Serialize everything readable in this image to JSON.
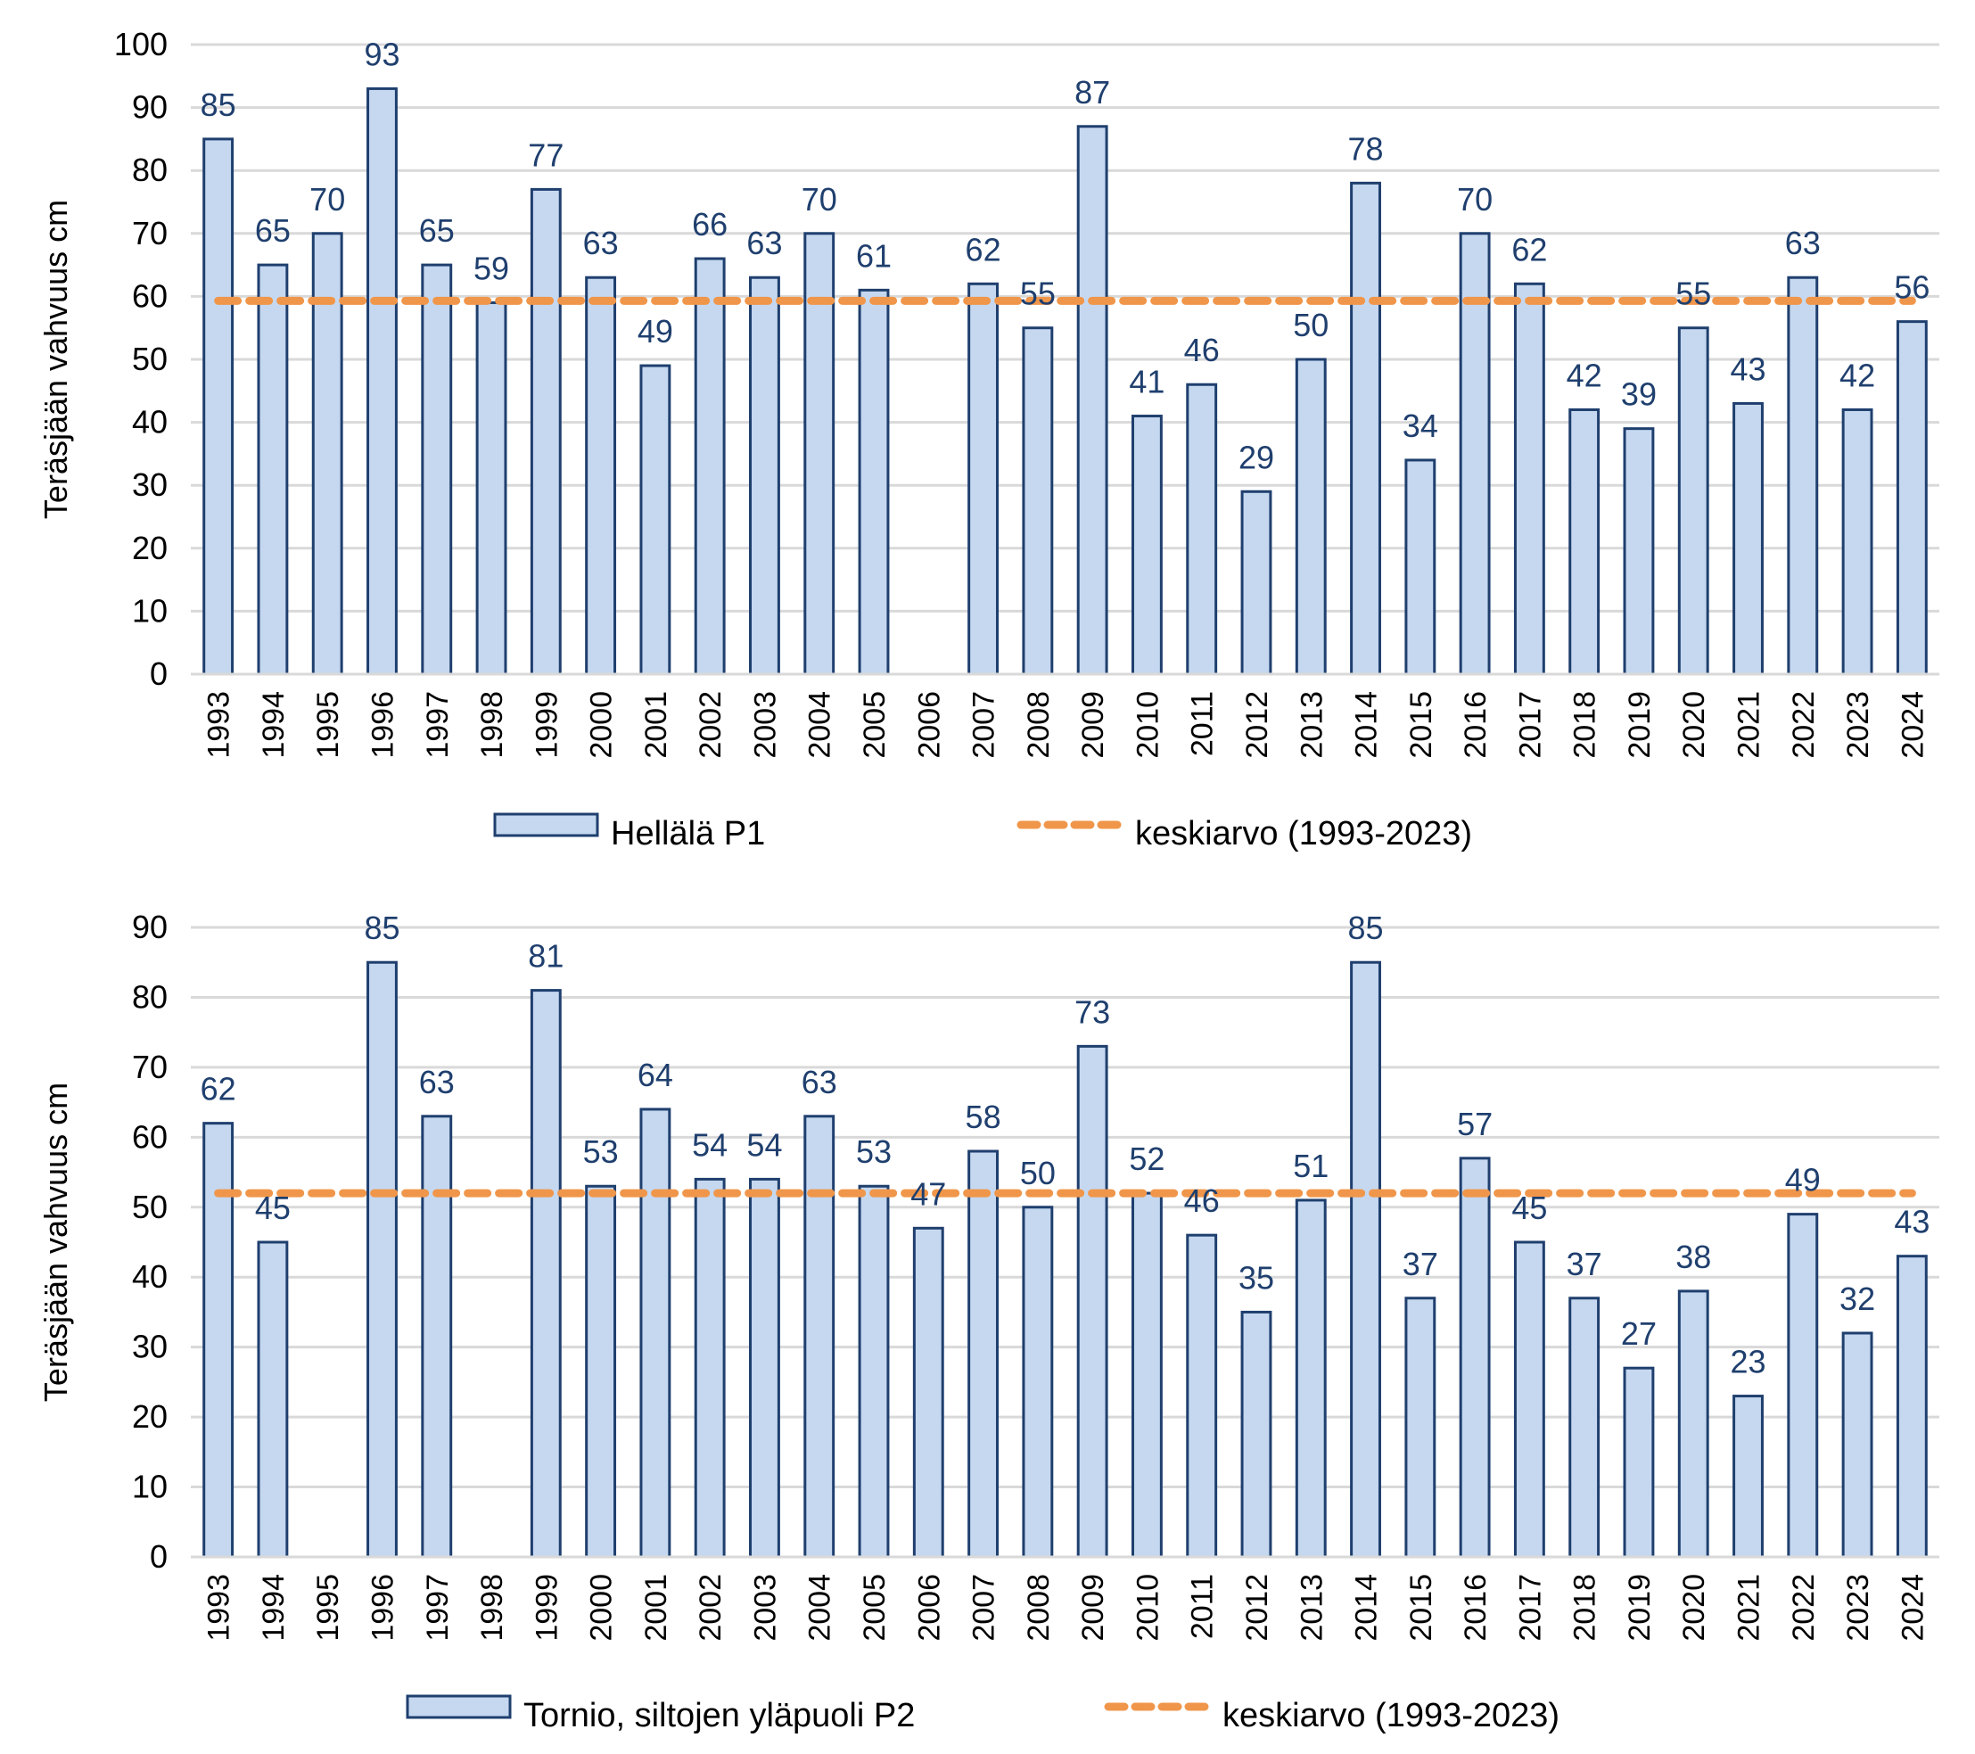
{
  "colors": {
    "bar_fill": "#c5d8f0",
    "bar_stroke": "#1f3f6e",
    "mean_line": "#f0964a",
    "grid": "#d9d9d9",
    "label": "#1f3f6e"
  },
  "chart_data": [
    {
      "type": "bar",
      "title": "",
      "xlabel": "",
      "ylabel": "Teräsjään vahvuus cm",
      "ylim": [
        0,
        100
      ],
      "yticks": [
        0,
        10,
        20,
        30,
        40,
        50,
        60,
        70,
        80,
        90,
        100
      ],
      "grid": true,
      "legend_position": "bottom",
      "categories": [
        "1993",
        "1994",
        "1995",
        "1996",
        "1997",
        "1998",
        "1999",
        "2000",
        "2001",
        "2002",
        "2003",
        "2004",
        "2005",
        "2006",
        "2007",
        "2008",
        "2009",
        "2010",
        "2011",
        "2012",
        "2013",
        "2014",
        "2015",
        "2016",
        "2017",
        "2018",
        "2019",
        "2020",
        "2021",
        "2022",
        "2023",
        "2024"
      ],
      "series": [
        {
          "name": "Hellälä P1",
          "type": "bar",
          "values": [
            85,
            65,
            70,
            93,
            65,
            59,
            77,
            63,
            49,
            66,
            63,
            70,
            61,
            null,
            62,
            55,
            87,
            41,
            46,
            29,
            50,
            78,
            34,
            70,
            62,
            42,
            39,
            55,
            43,
            63,
            42,
            56
          ]
        },
        {
          "name": "keskiarvo (1993-2023)",
          "type": "line",
          "style": "dashed",
          "value": 59.3
        }
      ]
    },
    {
      "type": "bar",
      "title": "",
      "xlabel": "",
      "ylabel": "Teräsjään vahvuus cm",
      "ylim": [
        0,
        90
      ],
      "yticks": [
        0,
        10,
        20,
        30,
        40,
        50,
        60,
        70,
        80,
        90
      ],
      "grid": true,
      "legend_position": "bottom",
      "categories": [
        "1993",
        "1994",
        "1995",
        "1996",
        "1997",
        "1998",
        "1999",
        "2000",
        "2001",
        "2002",
        "2003",
        "2004",
        "2005",
        "2006",
        "2007",
        "2008",
        "2009",
        "2010",
        "2011",
        "2012",
        "2013",
        "2014",
        "2015",
        "2016",
        "2017",
        "2018",
        "2019",
        "2020",
        "2021",
        "2022",
        "2023",
        "2024"
      ],
      "series": [
        {
          "name": "Tornio, siltojen yläpuoli P2",
          "type": "bar",
          "values": [
            62,
            45,
            null,
            85,
            63,
            null,
            81,
            53,
            64,
            54,
            54,
            63,
            53,
            47,
            58,
            50,
            73,
            52,
            46,
            35,
            51,
            85,
            37,
            57,
            45,
            37,
            27,
            38,
            23,
            49,
            32,
            43
          ]
        },
        {
          "name": "keskiarvo (1993-2023)",
          "type": "line",
          "style": "dashed",
          "value": 52
        }
      ]
    }
  ]
}
